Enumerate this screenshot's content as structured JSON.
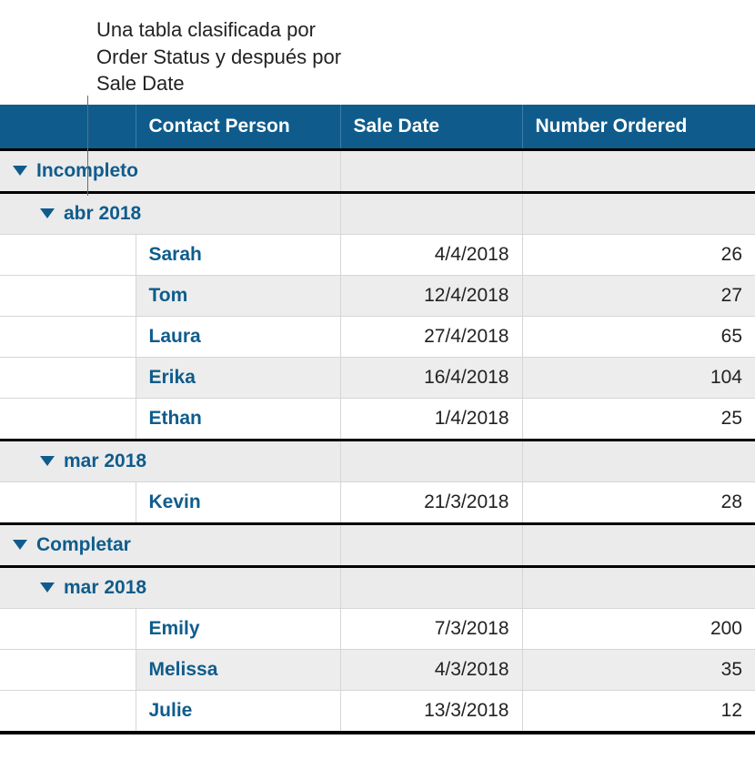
{
  "caption": "Una tabla clasificada por Order Status y después por Sale Date",
  "columns": {
    "indent": "",
    "contact": "Contact Person",
    "date": "Sale Date",
    "num": "Number Ordered"
  },
  "colors": {
    "header_bg": "#0f5c8c",
    "header_text": "#ffffff",
    "group_bg": "#ebebeb",
    "group_text": "#0f5c8c",
    "alt_row_bg": "#ededed",
    "body_text": "#222222",
    "thick_border": "#000000",
    "thin_border": "#d6d6d6",
    "callout_line": "#6b6b6b"
  },
  "groups": [
    {
      "label": "Incompleto",
      "subgroups": [
        {
          "label": "abr 2018",
          "rows": [
            {
              "name": "Sarah",
              "date": "4/4/2018",
              "num": "26",
              "alt": false
            },
            {
              "name": "Tom",
              "date": "12/4/2018",
              "num": "27",
              "alt": true
            },
            {
              "name": "Laura",
              "date": "27/4/2018",
              "num": "65",
              "alt": false
            },
            {
              "name": "Erika",
              "date": "16/4/2018",
              "num": "104",
              "alt": true
            },
            {
              "name": "Ethan",
              "date": "1/4/2018",
              "num": "25",
              "alt": false
            }
          ]
        },
        {
          "label": "mar 2018",
          "rows": [
            {
              "name": "Kevin",
              "date": "21/3/2018",
              "num": "28",
              "alt": false
            }
          ]
        }
      ]
    },
    {
      "label": "Completar",
      "subgroups": [
        {
          "label": "mar 2018",
          "rows": [
            {
              "name": "Emily",
              "date": "7/3/2018",
              "num": "200",
              "alt": false
            },
            {
              "name": "Melissa",
              "date": "4/3/2018",
              "num": "35",
              "alt": true
            },
            {
              "name": "Julie",
              "date": "13/3/2018",
              "num": "12",
              "alt": false
            }
          ]
        }
      ]
    }
  ]
}
